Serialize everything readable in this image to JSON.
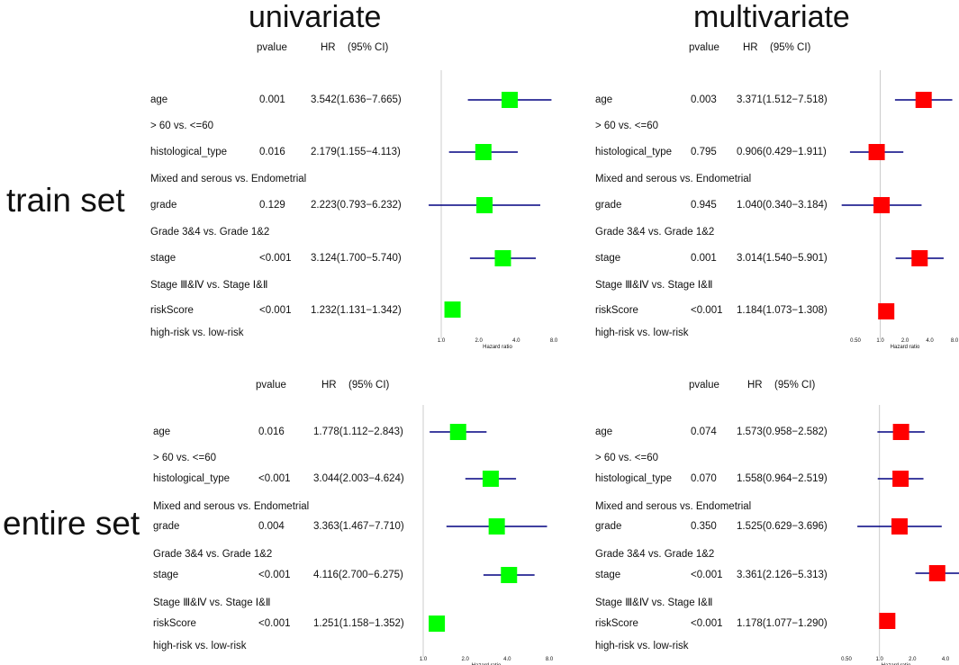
{
  "titles": {
    "univariate": "univariate",
    "multivariate": "multivariate"
  },
  "row_labels": {
    "train": "train set",
    "entire": "entire set"
  },
  "headers": {
    "pvalue": "pvalue",
    "hr": "HR",
    "ci": "(95% CI)"
  },
  "xlabel": "Hazard ratio",
  "colors": {
    "univariate_box": "#00ff00",
    "multivariate_box": "#ff0000",
    "ci_line": "#000080",
    "ref_line": "#cccccc"
  },
  "chart_data": [
    {
      "id": "train_univariate",
      "type": "forest",
      "title": "univariate",
      "xlabel": "Hazard ratio",
      "log_scale": true,
      "xlim": [
        1.0,
        8.0
      ],
      "ticks": [
        1.0,
        2.0,
        4.0,
        8.0
      ],
      "tick_labels": [
        "1.0",
        "2.0",
        "4.0",
        "8.0"
      ],
      "reference": 1.0,
      "rows": [
        {
          "variable": "age",
          "comparison": "> 60 vs. <=60",
          "pvalue": "0.001",
          "hr_text": "3.542(1.636−7.665)",
          "hr": 3.542,
          "lower": 1.636,
          "upper": 7.665
        },
        {
          "variable": "histological_type",
          "comparison": "Mixed and serous vs. Endometrial",
          "pvalue": "0.016",
          "hr_text": "2.179(1.155−4.113)",
          "hr": 2.179,
          "lower": 1.155,
          "upper": 4.113
        },
        {
          "variable": "grade",
          "comparison": "Grade 3&4 vs. Grade 1&2",
          "pvalue": "0.129",
          "hr_text": "2.223(0.793−6.232)",
          "hr": 2.223,
          "lower": 0.793,
          "upper": 6.232
        },
        {
          "variable": "stage",
          "comparison": "Stage Ⅲ&Ⅳ vs. Stage Ⅰ&Ⅱ",
          "pvalue": "<0.001",
          "hr_text": "3.124(1.700−5.740)",
          "hr": 3.124,
          "lower": 1.7,
          "upper": 5.74
        },
        {
          "variable": "riskScore",
          "comparison": "high-risk vs. low-risk",
          "pvalue": "<0.001",
          "hr_text": "1.232(1.131−1.342)",
          "hr": 1.232,
          "lower": 1.131,
          "upper": 1.342
        }
      ]
    },
    {
      "id": "train_multivariate",
      "type": "forest",
      "title": "multivariate",
      "xlabel": "Hazard ratio",
      "log_scale": true,
      "xlim": [
        0.5,
        8.0
      ],
      "ticks": [
        0.5,
        1.0,
        2.0,
        4.0,
        8.0
      ],
      "tick_labels": [
        "0.50",
        "1.0",
        "2.0",
        "4.0",
        "8.0"
      ],
      "reference": 1.0,
      "rows": [
        {
          "variable": "age",
          "comparison": "> 60 vs. <=60",
          "pvalue": "0.003",
          "hr_text": "3.371(1.512−7.518)",
          "hr": 3.371,
          "lower": 1.512,
          "upper": 7.518
        },
        {
          "variable": "histological_type",
          "comparison": "Mixed and serous vs. Endometrial",
          "pvalue": "0.795",
          "hr_text": "0.906(0.429−1.911)",
          "hr": 0.906,
          "lower": 0.429,
          "upper": 1.911
        },
        {
          "variable": "grade",
          "comparison": "Grade 3&4 vs. Grade 1&2",
          "pvalue": "0.945",
          "hr_text": "1.040(0.340−3.184)",
          "hr": 1.04,
          "lower": 0.34,
          "upper": 3.184
        },
        {
          "variable": "stage",
          "comparison": "Stage Ⅲ&Ⅳ vs. Stage Ⅰ&Ⅱ",
          "pvalue": "0.001",
          "hr_text": "3.014(1.540−5.901)",
          "hr": 3.014,
          "lower": 1.54,
          "upper": 5.901
        },
        {
          "variable": "riskScore",
          "comparison": "high-risk vs. low-risk",
          "pvalue": "<0.001",
          "hr_text": "1.184(1.073−1.308)",
          "hr": 1.184,
          "lower": 1.073,
          "upper": 1.308
        }
      ]
    },
    {
      "id": "entire_univariate",
      "type": "forest",
      "title": "univariate",
      "xlabel": "Hazard ratio",
      "log_scale": true,
      "xlim": [
        1.0,
        8.0
      ],
      "ticks": [
        1.0,
        2.0,
        4.0,
        8.0
      ],
      "tick_labels": [
        "1.0",
        "2.0",
        "4.0",
        "8.0"
      ],
      "reference": 1.0,
      "rows": [
        {
          "variable": "age",
          "comparison": "> 60 vs. <=60",
          "pvalue": "0.016",
          "hr_text": "1.778(1.112−2.843)",
          "hr": 1.778,
          "lower": 1.112,
          "upper": 2.843
        },
        {
          "variable": "histological_type",
          "comparison": "Mixed and serous vs. Endometrial",
          "pvalue": "<0.001",
          "hr_text": "3.044(2.003−4.624)",
          "hr": 3.044,
          "lower": 2.003,
          "upper": 4.624
        },
        {
          "variable": "grade",
          "comparison": "Grade 3&4 vs. Grade 1&2",
          "pvalue": "0.004",
          "hr_text": "3.363(1.467−7.710)",
          "hr": 3.363,
          "lower": 1.467,
          "upper": 7.71
        },
        {
          "variable": "stage",
          "comparison": "Stage Ⅲ&Ⅳ vs. Stage Ⅰ&Ⅱ",
          "pvalue": "<0.001",
          "hr_text": "4.116(2.700−6.275)",
          "hr": 4.116,
          "lower": 2.7,
          "upper": 6.275
        },
        {
          "variable": "riskScore",
          "comparison": "high-risk vs. low-risk",
          "pvalue": "<0.001",
          "hr_text": "1.251(1.158−1.352)",
          "hr": 1.251,
          "lower": 1.158,
          "upper": 1.352
        }
      ]
    },
    {
      "id": "entire_multivariate",
      "type": "forest",
      "title": "multivariate",
      "xlabel": "Hazard ratio",
      "log_scale": true,
      "xlim": [
        0.5,
        4.0
      ],
      "ticks": [
        0.5,
        1.0,
        2.0,
        4.0
      ],
      "tick_labels": [
        "0.50",
        "1.0",
        "2.0",
        "4.0"
      ],
      "reference": 1.0,
      "rows": [
        {
          "variable": "age",
          "comparison": "> 60 vs. <=60",
          "pvalue": "0.074",
          "hr_text": "1.573(0.958−2.582)",
          "hr": 1.573,
          "lower": 0.958,
          "upper": 2.582
        },
        {
          "variable": "histological_type",
          "comparison": "Mixed and serous vs. Endometrial",
          "pvalue": "0.070",
          "hr_text": "1.558(0.964−2.519)",
          "hr": 1.558,
          "lower": 0.964,
          "upper": 2.519
        },
        {
          "variable": "grade",
          "comparison": "Grade 3&4 vs. Grade 1&2",
          "pvalue": "0.350",
          "hr_text": "1.525(0.629−3.696)",
          "hr": 1.525,
          "lower": 0.629,
          "upper": 3.696
        },
        {
          "variable": "stage",
          "comparison": "Stage Ⅲ&Ⅳ vs. Stage Ⅰ&Ⅱ",
          "pvalue": "<0.001",
          "hr_text": "3.361(2.126−5.313)",
          "hr": 3.361,
          "lower": 2.126,
          "upper": 5.313
        },
        {
          "variable": "riskScore",
          "comparison": "high-risk vs. low-risk",
          "pvalue": "<0.001",
          "hr_text": "1.178(1.077−1.290)",
          "hr": 1.178,
          "lower": 1.077,
          "upper": 1.29
        }
      ]
    }
  ]
}
